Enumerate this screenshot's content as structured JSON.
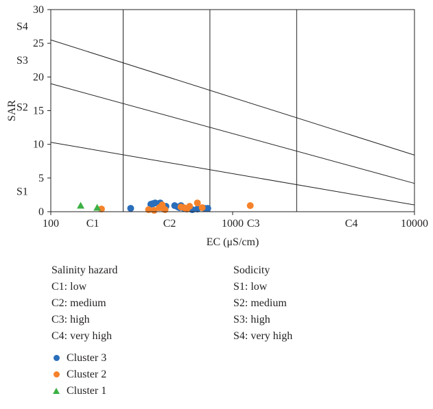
{
  "chart_data": {
    "type": "scatter",
    "xlabel": "EC (μS/cm)",
    "ylabel": "SAR",
    "x_scale": "log",
    "xlim": [
      100,
      10000
    ],
    "ylim": [
      0,
      30
    ],
    "x_ticks": [
      {
        "value": 100,
        "label": "100"
      },
      {
        "value": 1000,
        "label": "1000"
      },
      {
        "value": 10000,
        "label": "10000"
      }
    ],
    "y_ticks": [
      0,
      5,
      10,
      15,
      20,
      25,
      30
    ],
    "class_dividers_x": [
      250,
      750,
      2250
    ],
    "class_boundary_lines": [
      {
        "points": [
          [
            100,
            10.3
          ],
          [
            10000,
            1.0
          ]
        ]
      },
      {
        "points": [
          [
            100,
            19.0
          ],
          [
            10000,
            4.2
          ]
        ]
      },
      {
        "points": [
          [
            100,
            25.5
          ],
          [
            10000,
            8.4
          ]
        ]
      }
    ],
    "zone_labels_x": [
      {
        "label": "C1",
        "x": 170
      },
      {
        "label": "C2",
        "x": 450
      },
      {
        "label": "C3",
        "x": 1300
      },
      {
        "label": "C4",
        "x": 4500
      }
    ],
    "zone_labels_y": [
      {
        "label": "S1",
        "y": 3
      },
      {
        "label": "S2",
        "y": 15.5
      },
      {
        "label": "S3",
        "y": 22.5
      },
      {
        "label": "S4",
        "y": 27.5
      }
    ],
    "series": [
      {
        "name": "Cluster 3",
        "marker": "circle",
        "color": "#2a6ebb",
        "points": [
          [
            275,
            0.5
          ],
          [
            355,
            1.1
          ],
          [
            365,
            1.2
          ],
          [
            375,
            1.3
          ],
          [
            390,
            1.2
          ],
          [
            400,
            1.3
          ],
          [
            430,
            0.8
          ],
          [
            480,
            0.9
          ],
          [
            500,
            0.7
          ],
          [
            510,
            0.6
          ],
          [
            520,
            0.9
          ],
          [
            540,
            0.5
          ],
          [
            560,
            0.4
          ],
          [
            600,
            0.3
          ],
          [
            640,
            0.4
          ],
          [
            700,
            0.5
          ],
          [
            730,
            0.5
          ]
        ]
      },
      {
        "name": "Cluster 2",
        "marker": "circle",
        "color": "#f5822a",
        "points": [
          [
            190,
            0.4
          ],
          [
            345,
            0.3
          ],
          [
            370,
            0.2
          ],
          [
            395,
            0.6
          ],
          [
            410,
            1.0
          ],
          [
            415,
            0.5
          ],
          [
            425,
            0.3
          ],
          [
            520,
            0.7
          ],
          [
            540,
            0.6
          ],
          [
            560,
            0.4
          ],
          [
            580,
            0.8
          ],
          [
            640,
            1.3
          ],
          [
            680,
            0.6
          ],
          [
            1250,
            0.9
          ]
        ]
      },
      {
        "name": "Cluster 1",
        "marker": "triangle",
        "color": "#3cb044",
        "points": [
          [
            146,
            0.9
          ],
          [
            180,
            0.6
          ]
        ]
      }
    ],
    "legend": {
      "salinity": {
        "title": "Salinity hazard",
        "items": [
          "C1: low",
          "C2: medium",
          "C3: high",
          "C4: very high"
        ]
      },
      "sodicity": {
        "title": "Sodicity",
        "items": [
          "S1: low",
          "S2: medium",
          "S3: high",
          "S4: very high"
        ]
      },
      "markers": [
        "Cluster 3",
        "Cluster 2",
        "Cluster 1"
      ]
    },
    "grid": false
  }
}
